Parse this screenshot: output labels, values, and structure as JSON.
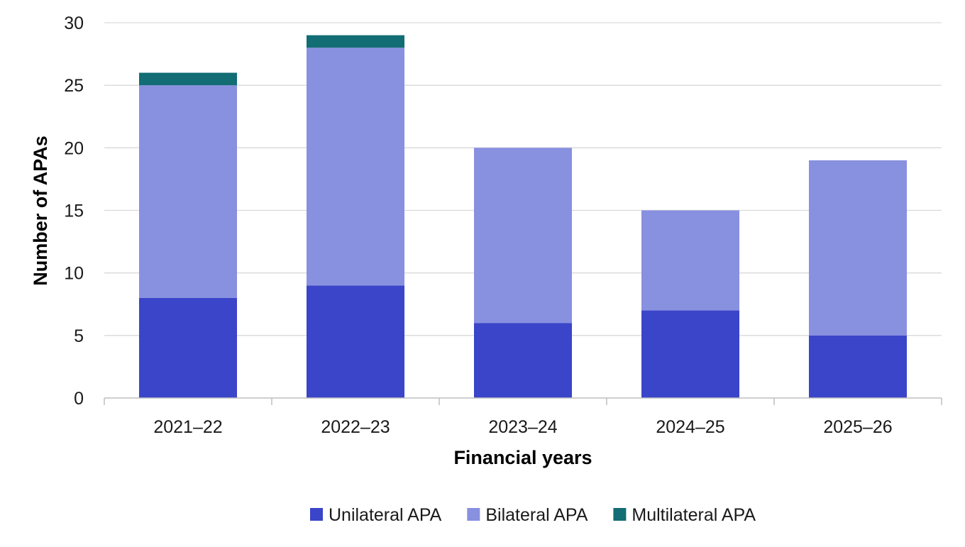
{
  "chart_data": {
    "type": "bar",
    "stacked": true,
    "categories": [
      "2021–22",
      "2022–23",
      "2023–24",
      "2024–25",
      "2025–26"
    ],
    "series": [
      {
        "name": "Unilateral APA",
        "values": [
          8,
          9,
          6,
          7,
          5
        ],
        "color": "#3a45c9"
      },
      {
        "name": "Bilateral APA",
        "values": [
          17,
          19,
          14,
          8,
          14
        ],
        "color": "#8890e0"
      },
      {
        "name": "Multilateral APA",
        "values": [
          1,
          1,
          0,
          0,
          0
        ],
        "color": "#126d74"
      }
    ],
    "xlabel": "Financial years",
    "ylabel": "Number of APAs",
    "ylim": [
      0,
      30
    ],
    "yticks": [
      "0",
      "5",
      "10",
      "15",
      "20",
      "25",
      "30"
    ],
    "grid": true,
    "legend_position": "bottom"
  }
}
